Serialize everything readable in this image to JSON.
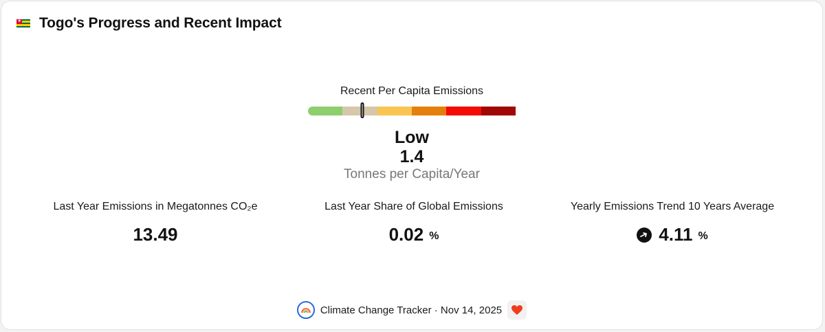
{
  "header": {
    "title": "Togo's Progress and Recent Impact",
    "flag_icon": "togo-flag-icon",
    "flag_colors": [
      "#006a4e",
      "#ffce00",
      "#d21034",
      "#ffffff"
    ]
  },
  "gauge": {
    "label": "Recent Per Capita Emissions",
    "segments": [
      "#8fce6d",
      "#d6c7ab",
      "#f9c552",
      "#e57f0c",
      "#f50a05",
      "#a00705"
    ],
    "marker_fraction": 0.26,
    "level": "Low",
    "value": "1.4",
    "unit": "Tonnes per Capita/Year"
  },
  "stats": [
    {
      "label": "Last Year Emissions in Megatonnes CO₂e",
      "value": "13.49",
      "unit": ""
    },
    {
      "label": "Last Year Share of Global Emissions",
      "value": "0.02",
      "unit": "%"
    },
    {
      "label": "Yearly Emissions Trend 10 Years Average",
      "value": "4.11",
      "unit": "%",
      "icon": "arrow-right-circle-icon"
    }
  ],
  "footer": {
    "source": "Climate Change Tracker · Nov 14, 2025",
    "logo_icon": "climate-tracker-logo-icon",
    "heart_icon": "heart-icon",
    "heart_color": "#f03c1e"
  }
}
